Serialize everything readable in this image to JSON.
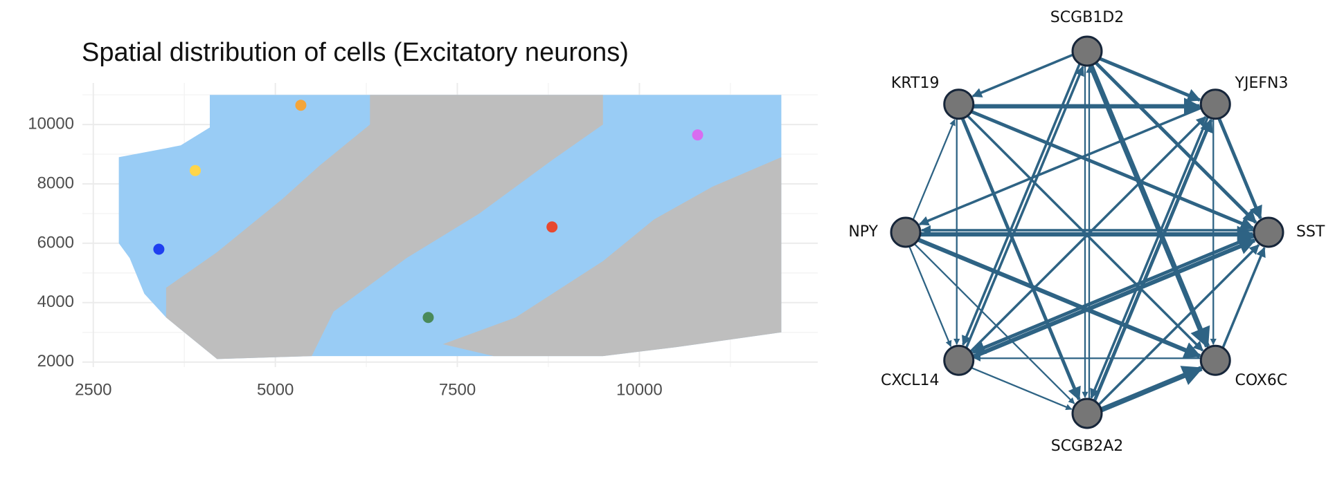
{
  "chart_data": [
    {
      "type": "scatter",
      "title": "Spatial distribution of cells (Excitatory neurons)",
      "x": [
        3400,
        3900,
        5350,
        7100,
        8800,
        10800
      ],
      "y": [
        5800,
        8450,
        10650,
        3500,
        6550,
        9650
      ],
      "colors": [
        "#1f3ff0",
        "#ffd54a",
        "#f4a53a",
        "#4a8a5a",
        "#e8482f",
        "#d86df0"
      ],
      "xlim": [
        2350,
        12450
      ],
      "ylim": [
        1830,
        11400
      ],
      "xticks": [
        2500,
        5000,
        7500,
        10000
      ],
      "yticks": [
        2000,
        4000,
        6000,
        8000,
        10000
      ],
      "grid": true
    },
    {
      "type": "network",
      "color": "#2e6384",
      "nodes": [
        "SCGB1D2",
        "YJEFN3",
        "SST",
        "COX6C",
        "SCGB2A2",
        "CXCL14",
        "NPY",
        "KRT19"
      ],
      "edges": [
        {
          "source": 0,
          "target": 3,
          "weight": 5
        },
        {
          "source": 4,
          "target": 3,
          "weight": 5
        },
        {
          "source": 5,
          "target": 2,
          "weight": 4
        },
        {
          "source": 2,
          "target": 5,
          "weight": 3
        },
        {
          "source": 6,
          "target": 2,
          "weight": 4
        },
        {
          "source": 6,
          "target": 3,
          "weight": 4
        },
        {
          "source": 7,
          "target": 1,
          "weight": 4
        },
        {
          "source": 0,
          "target": 1,
          "weight": 3
        },
        {
          "source": 7,
          "target": 4,
          "weight": 3
        },
        {
          "source": 7,
          "target": 2,
          "weight": 3
        },
        {
          "source": 7,
          "target": 3,
          "weight": 2
        },
        {
          "source": 0,
          "target": 7,
          "weight": 2
        },
        {
          "source": 6,
          "target": 5,
          "weight": 1
        },
        {
          "source": 6,
          "target": 7,
          "weight": 1
        },
        {
          "source": 0,
          "target": 4,
          "weight": 1
        },
        {
          "source": 4,
          "target": 0,
          "weight": 1
        },
        {
          "source": 5,
          "target": 0,
          "weight": 2
        },
        {
          "source": 4,
          "target": 1,
          "weight": 3
        },
        {
          "source": 5,
          "target": 1,
          "weight": 2
        },
        {
          "source": 1,
          "target": 2,
          "weight": 3
        },
        {
          "source": 2,
          "target": 6,
          "weight": 2
        },
        {
          "source": 1,
          "target": 6,
          "weight": 2
        },
        {
          "source": 3,
          "target": 2,
          "weight": 2
        },
        {
          "source": 4,
          "target": 2,
          "weight": 2
        },
        {
          "source": 5,
          "target": 4,
          "weight": 1
        },
        {
          "source": 3,
          "target": 5,
          "weight": 1
        },
        {
          "source": 1,
          "target": 3,
          "weight": 1
        },
        {
          "source": 0,
          "target": 2,
          "weight": 3
        },
        {
          "source": 7,
          "target": 5,
          "weight": 1
        },
        {
          "source": 6,
          "target": 4,
          "weight": 1
        },
        {
          "source": 0,
          "target": 5,
          "weight": 2
        },
        {
          "source": 1,
          "target": 4,
          "weight": 2
        }
      ]
    }
  ]
}
